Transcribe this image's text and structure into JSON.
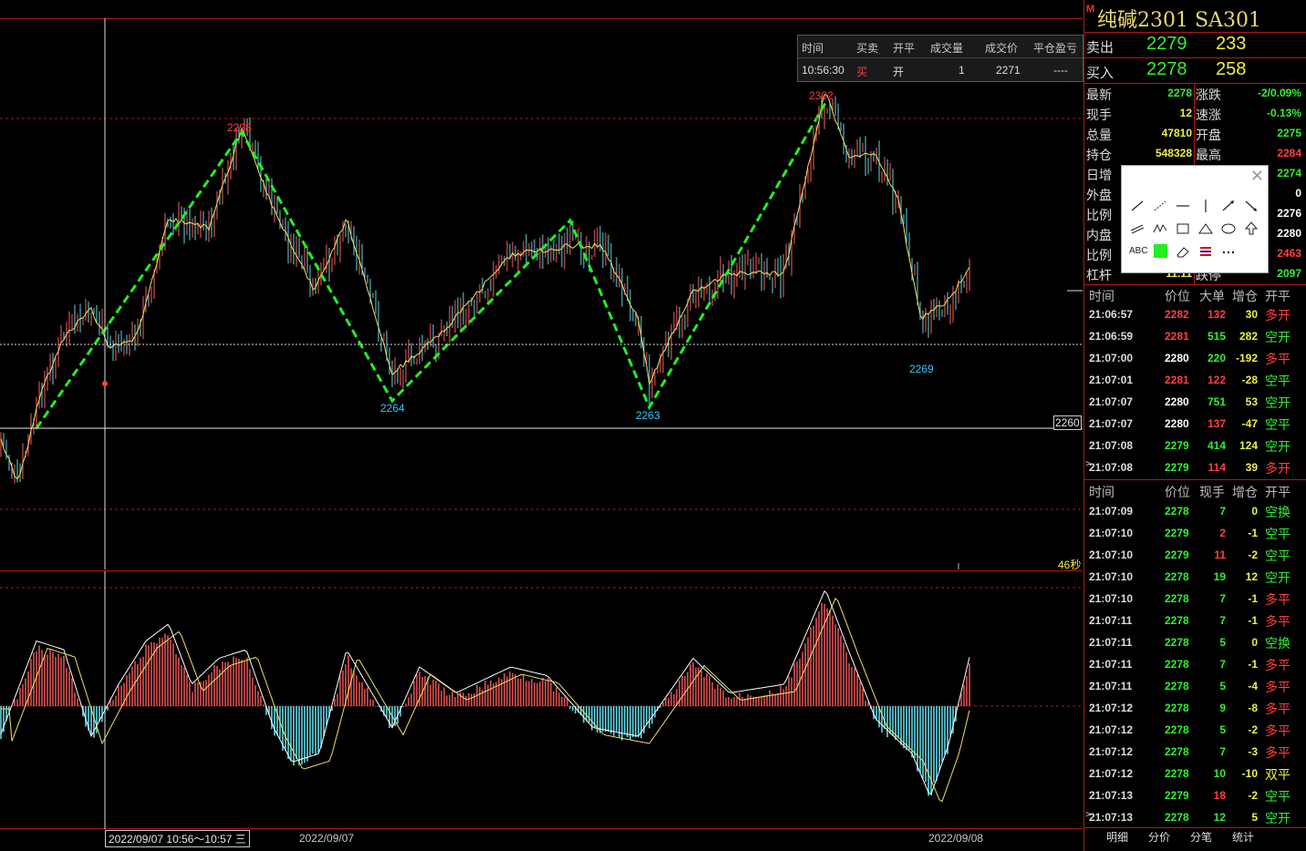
{
  "chart": {
    "price_labels": {
      "peak1": "2298",
      "trough1": "2264",
      "peak2": "2302",
      "trough2": "2263",
      "trough3": "2269"
    },
    "axis_price": "2260",
    "countdown": "46秒",
    "date_left": "2022/09/07",
    "date_right": "2022/09/08",
    "cursor_time": "2022/09/07 10:56～10:57 三",
    "colors": {
      "up": "#ff4040",
      "down": "#30c8ff",
      "zigzag": "#22ee22",
      "frame": "#b01818",
      "candle_up": "#ff6060",
      "candle_down": "#60d8e8",
      "ma": "#f0e060"
    }
  },
  "trade_popup": {
    "headers": [
      "时间",
      "买卖",
      "开平",
      "成交量",
      "成交价",
      "平仓盈亏"
    ],
    "row": {
      "time": "10:56:30",
      "side": "买",
      "open_close": "开",
      "qty": "1",
      "price": "2271",
      "pnl": "----"
    }
  },
  "panel": {
    "badge": "M",
    "title": "纯碱2301  SA301",
    "sell": {
      "label": "卖出",
      "price": "2279",
      "vol": "233"
    },
    "buy": {
      "label": "买入",
      "price": "2278",
      "vol": "258"
    },
    "stats": [
      {
        "k": "最新",
        "v": "2278",
        "c": "#33ee33"
      },
      {
        "k": "涨跌",
        "v": "-2/0.09%",
        "c": "#33ee33"
      },
      {
        "k": "现手",
        "v": "12",
        "c": "#f0f040"
      },
      {
        "k": "速涨",
        "v": "-0.13%",
        "c": "#33ee33"
      },
      {
        "k": "总量",
        "v": "47810",
        "c": "#f0f040"
      },
      {
        "k": "开盘",
        "v": "2275",
        "c": "#33ee33"
      },
      {
        "k": "持仓",
        "v": "548328",
        "c": "#f0f040"
      },
      {
        "k": "最高",
        "v": "2284",
        "c": "#ff4040"
      },
      {
        "k": "日增",
        "v": "",
        "c": "#f0f040"
      },
      {
        "k": "",
        "v": "2274",
        "c": "#33ee33"
      },
      {
        "k": "外盘",
        "v": "",
        "c": "#ff4040"
      },
      {
        "k": "",
        "v": "0",
        "c": "#ffffff"
      },
      {
        "k": "比例",
        "v": "",
        "c": "#ff4040"
      },
      {
        "k": "",
        "v": "2276",
        "c": "#ffffff"
      },
      {
        "k": "内盘",
        "v": "",
        "c": "#33ee33"
      },
      {
        "k": "",
        "v": "2280",
        "c": "#ffffff"
      },
      {
        "k": "比例",
        "v": "",
        "c": "#33ee33"
      },
      {
        "k": "",
        "v": "2463",
        "c": "#ff4040"
      },
      {
        "k": "杠杆",
        "v": "11.11",
        "c": "#f0f040"
      },
      {
        "k": "跌停",
        "v": "2097",
        "c": "#33ee33"
      }
    ],
    "big_header": [
      "时间",
      "价位",
      "大单",
      "增仓",
      "开平"
    ],
    "big_rows": [
      {
        "t": "21:06:57",
        "p": "2282",
        "pc": "#ff4040",
        "q": "132",
        "qc": "#ff4040",
        "d": "30",
        "dc": "#f0f040",
        "o": "多开",
        "oc": "#ff4040"
      },
      {
        "t": "21:06:59",
        "p": "2281",
        "pc": "#ff4040",
        "q": "515",
        "qc": "#33ee33",
        "d": "282",
        "dc": "#f0f040",
        "o": "空开",
        "oc": "#33ee33"
      },
      {
        "t": "21:07:00",
        "p": "2280",
        "pc": "#ffffff",
        "q": "220",
        "qc": "#33ee33",
        "d": "-192",
        "dc": "#f0f040",
        "o": "多平",
        "oc": "#ff4040"
      },
      {
        "t": "21:07:01",
        "p": "2281",
        "pc": "#ff4040",
        "q": "122",
        "qc": "#ff4040",
        "d": "-28",
        "dc": "#f0f040",
        "o": "空平",
        "oc": "#33ee33"
      },
      {
        "t": "21:07:07",
        "p": "2280",
        "pc": "#ffffff",
        "q": "751",
        "qc": "#33ee33",
        "d": "53",
        "dc": "#f0f040",
        "o": "空开",
        "oc": "#33ee33"
      },
      {
        "t": "21:07:07",
        "p": "2280",
        "pc": "#ffffff",
        "q": "137",
        "qc": "#ff4040",
        "d": "-47",
        "dc": "#f0f040",
        "o": "空平",
        "oc": "#33ee33"
      },
      {
        "t": "21:07:08",
        "p": "2279",
        "pc": "#33ee33",
        "q": "414",
        "qc": "#33ee33",
        "d": "124",
        "dc": "#f0f040",
        "o": "空开",
        "oc": "#33ee33"
      },
      {
        "t": "21:07:08",
        "p": "2279",
        "pc": "#33ee33",
        "q": "114",
        "qc": "#ff4040",
        "d": "39",
        "dc": "#f0f040",
        "o": "多开",
        "oc": "#ff4040"
      }
    ],
    "tick_header": [
      "时间",
      "价位",
      "现手",
      "增仓",
      "开平"
    ],
    "tick_rows": [
      {
        "t": "21:07:09",
        "p": "2278",
        "q": "7",
        "qc": "#33ee33",
        "d": "0",
        "o": "空换",
        "oc": "#33ee33"
      },
      {
        "t": "21:07:10",
        "p": "2279",
        "q": "2",
        "qc": "#ff4040",
        "d": "-1",
        "o": "空平",
        "oc": "#33ee33"
      },
      {
        "t": "21:07:10",
        "p": "2279",
        "q": "11",
        "qc": "#ff4040",
        "d": "-2",
        "o": "空平",
        "oc": "#33ee33"
      },
      {
        "t": "21:07:10",
        "p": "2278",
        "q": "19",
        "qc": "#33ee33",
        "d": "12",
        "o": "空开",
        "oc": "#33ee33"
      },
      {
        "t": "21:07:10",
        "p": "2278",
        "q": "7",
        "qc": "#33ee33",
        "d": "-1",
        "o": "多平",
        "oc": "#ff4040"
      },
      {
        "t": "21:07:11",
        "p": "2278",
        "q": "7",
        "qc": "#33ee33",
        "d": "-1",
        "o": "多平",
        "oc": "#ff4040"
      },
      {
        "t": "21:07:11",
        "p": "2278",
        "q": "5",
        "qc": "#33ee33",
        "d": "0",
        "o": "空换",
        "oc": "#33ee33"
      },
      {
        "t": "21:07:11",
        "p": "2278",
        "q": "7",
        "qc": "#33ee33",
        "d": "-1",
        "o": "多平",
        "oc": "#ff4040"
      },
      {
        "t": "21:07:11",
        "p": "2278",
        "q": "5",
        "qc": "#33ee33",
        "d": "-4",
        "o": "多平",
        "oc": "#ff4040"
      },
      {
        "t": "21:07:12",
        "p": "2278",
        "q": "9",
        "qc": "#33ee33",
        "d": "-8",
        "o": "多平",
        "oc": "#ff4040"
      },
      {
        "t": "21:07:12",
        "p": "2278",
        "q": "5",
        "qc": "#33ee33",
        "d": "-2",
        "o": "多平",
        "oc": "#ff4040"
      },
      {
        "t": "21:07:12",
        "p": "2278",
        "q": "7",
        "qc": "#33ee33",
        "d": "-3",
        "o": "多平",
        "oc": "#ff4040"
      },
      {
        "t": "21:07:12",
        "p": "2278",
        "q": "10",
        "qc": "#33ee33",
        "d": "-10",
        "o": "双平",
        "oc": "#f0f040"
      },
      {
        "t": "21:07:13",
        "p": "2279",
        "q": "18",
        "qc": "#ff4040",
        "d": "-2",
        "o": "空平",
        "oc": "#33ee33"
      },
      {
        "t": "21:07:13",
        "p": "2278",
        "q": "12",
        "qc": "#33ee33",
        "d": "5",
        "o": "空开",
        "oc": "#33ee33"
      }
    ],
    "tabs": [
      "明细",
      "分价",
      "分笔",
      "统计"
    ]
  },
  "toolbox": {
    "icons": [
      "line-tool-icon",
      "ray-tool-icon",
      "hline-tool-icon",
      "vline-tool-icon",
      "arrow-tool-icon",
      "arrow-down-tool-icon",
      "parallel-tool-icon",
      "wave-tool-icon",
      "rect-tool-icon",
      "triangle-tool-icon",
      "ellipse-tool-icon",
      "up-arrow-tool-icon",
      "text-tool-icon",
      "color-swatch-icon",
      "eraser-tool-icon",
      "fib-tool-icon",
      "more-tools-icon"
    ],
    "text_label": "ABC",
    "swatch_color": "#22ee22"
  }
}
